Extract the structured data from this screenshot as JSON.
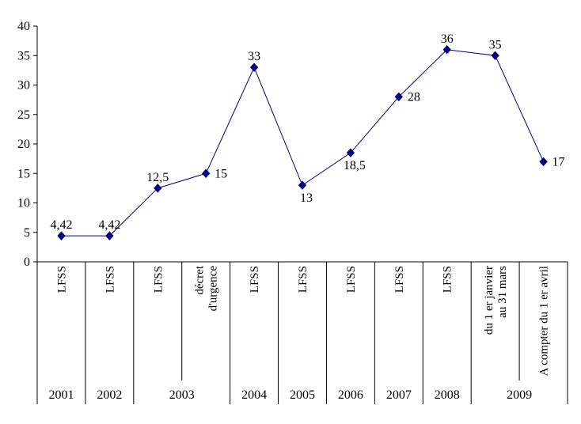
{
  "chart_data": {
    "type": "line",
    "title": "",
    "xlabel": "",
    "ylabel": "",
    "y_axis": {
      "min": 0,
      "max": 40,
      "step": 5,
      "tick_labels": [
        "0",
        "5",
        "10",
        "15",
        "20",
        "25",
        "30",
        "35",
        "40"
      ]
    },
    "series": [
      {
        "name": "",
        "values": [
          4.42,
          4.42,
          12.5,
          15,
          33,
          13,
          18.5,
          28,
          36,
          35,
          17
        ],
        "point_labels": [
          "4,42",
          "4,42",
          "12,5",
          "15",
          "33",
          "13",
          "18,5",
          "28",
          "36",
          "35",
          "17"
        ],
        "label_positions": [
          "above",
          "above",
          "above",
          "right",
          "above",
          "below",
          "below",
          "right",
          "above",
          "above",
          "right"
        ],
        "color": "#000080",
        "marker": "diamond"
      }
    ],
    "categories": [
      {
        "lines": [
          "LFSS"
        ],
        "year": "2001"
      },
      {
        "lines": [
          "LFSS"
        ],
        "year": "2002"
      },
      {
        "lines": [
          "LFSS"
        ],
        "year": "2003"
      },
      {
        "lines": [
          "décret",
          "d'urgence"
        ],
        "year": "2003"
      },
      {
        "lines": [
          "LFSS"
        ],
        "year": "2004"
      },
      {
        "lines": [
          "LFSS"
        ],
        "year": "2005"
      },
      {
        "lines": [
          "LFSS"
        ],
        "year": "2006"
      },
      {
        "lines": [
          "LFSS"
        ],
        "year": "2007"
      },
      {
        "lines": [
          "LFSS"
        ],
        "year": "2008"
      },
      {
        "lines": [
          "du 1 er janvier",
          "au 31 mars"
        ],
        "year": "2009"
      },
      {
        "lines": [
          "A compter du 1 er avril"
        ],
        "year": "2009"
      }
    ],
    "year_groups": [
      {
        "label": "2001",
        "span": 1
      },
      {
        "label": "2002",
        "span": 1
      },
      {
        "label": "2003",
        "span": 2
      },
      {
        "label": "2004",
        "span": 1
      },
      {
        "label": "2005",
        "span": 1
      },
      {
        "label": "2006",
        "span": 1
      },
      {
        "label": "2007",
        "span": 1
      },
      {
        "label": "2008",
        "span": 1
      },
      {
        "label": "2009",
        "span": 2
      }
    ],
    "grid": false,
    "legend": false,
    "axis_color": "#000000",
    "text_color": "#000000",
    "line_color": "#000080",
    "background": "#ffffff"
  }
}
